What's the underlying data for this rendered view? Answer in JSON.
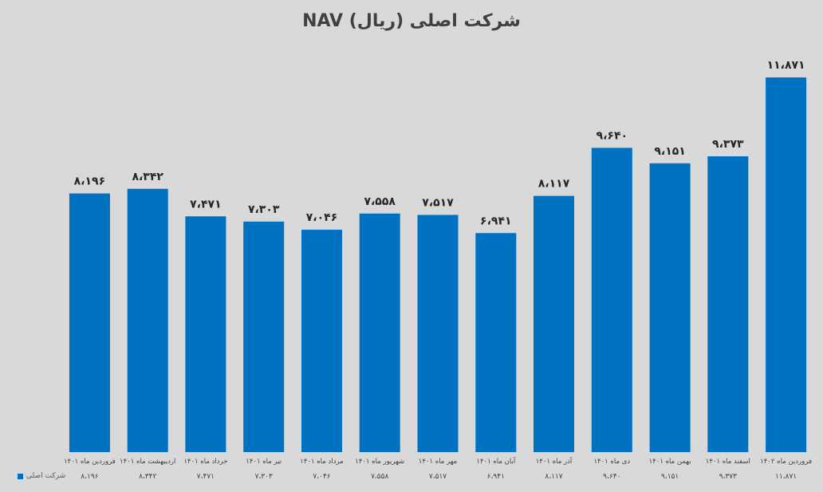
{
  "chart_data": {
    "type": "bar",
    "title": "NAV شرکت اصلی (ریال)",
    "categories": [
      "فروردین ماه ۱۴۰۱",
      "اردیبهشت ماه ۱۴۰۱",
      "خرداد ماه ۱۴۰۱",
      "تیر ماه ۱۴۰۱",
      "مرداد ماه ۱۴۰۱",
      "شهریور ماه ۱۴۰۱",
      "مهر ماه ۱۴۰۱",
      "آبان ماه ۱۴۰۱",
      "آذر ماه ۱۴۰۱",
      "دی ماه ۱۴۰۱",
      "بهمن ماه ۱۴۰۱",
      "اسفند ماه ۱۴۰۱",
      "فروردین ماه ۱۴۰۲"
    ],
    "series": [
      {
        "name": "شرکت اصلی",
        "values": [
          8196,
          8342,
          7471,
          7303,
          7046,
          7558,
          7517,
          6941,
          8117,
          9640,
          9151,
          9373,
          11871
        ],
        "labels": [
          "۸،۱۹۶",
          "۸،۳۴۲",
          "۷،۴۷۱",
          "۷،۳۰۳",
          "۷،۰۴۶",
          "۷،۵۵۸",
          "۷،۵۱۷",
          "۶،۹۴۱",
          "۸،۱۱۷",
          "۹،۶۴۰",
          "۹،۱۵۱",
          "۹،۳۷۳",
          "۱۱،۸۷۱"
        ]
      }
    ],
    "ylim": [
      0,
      12000
    ],
    "grid": false,
    "legend_position": "bottom-left",
    "bar_color": "#0070c0"
  }
}
